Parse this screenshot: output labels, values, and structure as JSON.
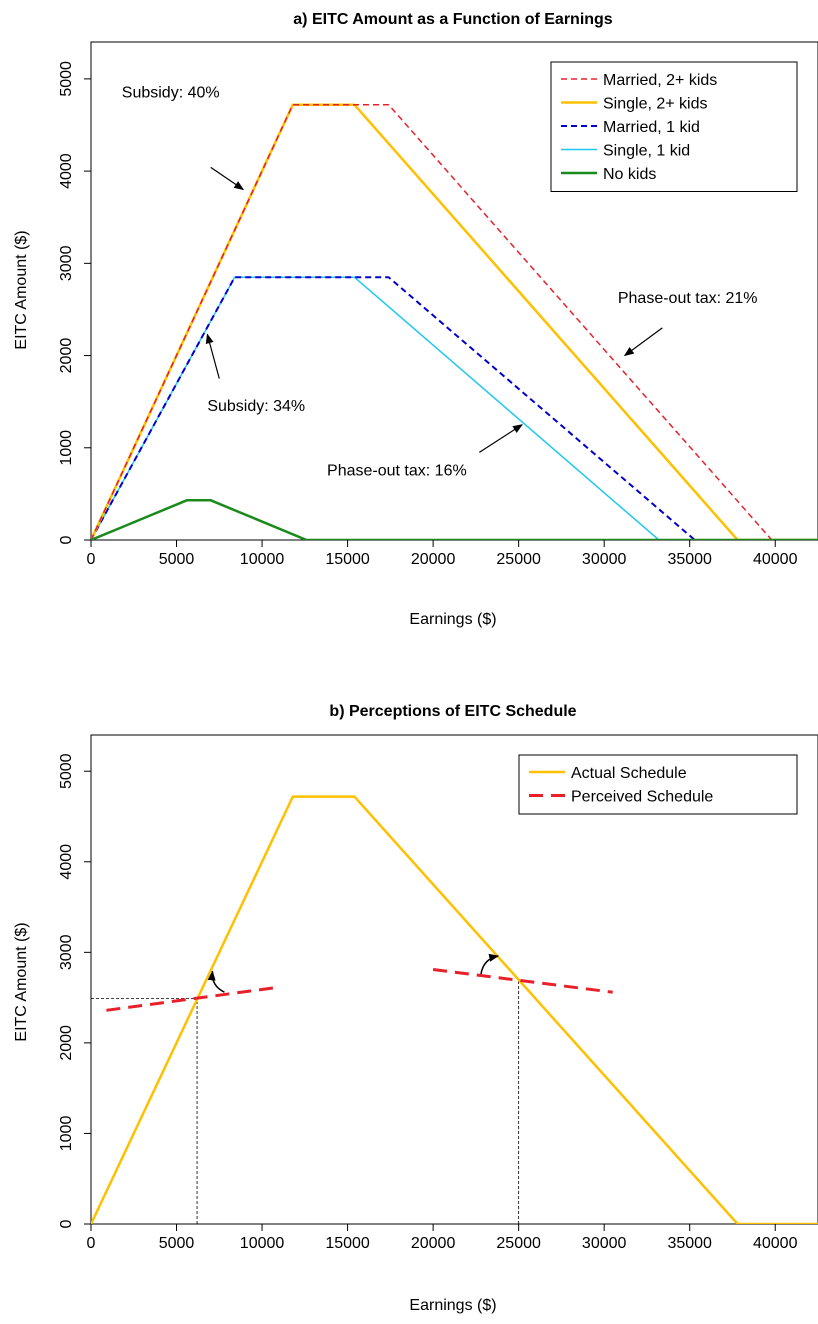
{
  "chart_data": [
    {
      "id": "a",
      "type": "line",
      "title": "a) EITC Amount as a Function of Earnings",
      "xlabel": "Earnings ($)",
      "ylabel": "EITC Amount ($)",
      "xlim": [
        0,
        42500
      ],
      "ylim": [
        0,
        5400
      ],
      "xticks": [
        0,
        5000,
        10000,
        15000,
        20000,
        25000,
        30000,
        35000,
        40000
      ],
      "xtick_labels": [
        "0",
        "5000",
        "10000",
        "15000",
        "20000",
        "25000",
        "30000",
        "35000",
        "40000"
      ],
      "yticks": [
        0,
        1000,
        2000,
        3000,
        4000,
        5000
      ],
      "ytick_labels": [
        "0",
        "1000",
        "2000",
        "3000",
        "4000",
        "5000"
      ],
      "grid": false,
      "legend_position": "top-right",
      "series": [
        {
          "name": "Single, 1 kid",
          "color": "#1EC8F0",
          "dash": "solid",
          "width": 1.5,
          "points": [
            [
              0,
              0
            ],
            [
              8400,
              2850
            ],
            [
              15400,
              2850
            ],
            [
              33200,
              0
            ],
            [
              42500,
              0
            ]
          ]
        },
        {
          "name": "Married, 1 kid",
          "color": "#0000CC",
          "dash": "dashed",
          "width": 2,
          "points": [
            [
              0,
              0
            ],
            [
              8400,
              2850
            ],
            [
              17400,
              2850
            ],
            [
              35300,
              0
            ],
            [
              42500,
              0
            ]
          ]
        },
        {
          "name": "Single, 2+ kids",
          "color": "#FFC000",
          "dash": "solid",
          "width": 2.5,
          "points": [
            [
              0,
              0
            ],
            [
              11800,
              4720
            ],
            [
              15400,
              4720
            ],
            [
              37800,
              0
            ],
            [
              42500,
              0
            ]
          ]
        },
        {
          "name": "Married, 2+ kids",
          "color": "#E8202A",
          "dash": "dashed",
          "width": 1.5,
          "points": [
            [
              0,
              0
            ],
            [
              11800,
              4720
            ],
            [
              17400,
              4720
            ],
            [
              39800,
              0
            ],
            [
              42500,
              0
            ]
          ]
        },
        {
          "name": "No kids",
          "color": "#1A8A1A",
          "dash": "solid",
          "width": 2.5,
          "points": [
            [
              0,
              0
            ],
            [
              5600,
              430
            ],
            [
              7000,
              430
            ],
            [
              12600,
              0
            ],
            [
              42500,
              0
            ]
          ]
        }
      ],
      "legend_order": [
        "Married, 2+ kids",
        "Single, 2+ kids",
        "Married, 1 kid",
        "Single, 1 kid",
        "No kids"
      ],
      "annotations": [
        {
          "text": "Subsidy: 40%",
          "tx": 1800,
          "ty": 4800,
          "ax0": 7000,
          "ay0": 4040,
          "ax1": 8900,
          "ay1": 3800
        },
        {
          "text": "Subsidy: 34%",
          "tx": 6800,
          "ty": 1400,
          "ax0": 7500,
          "ay0": 1750,
          "ax1": 6800,
          "ay1": 2230
        },
        {
          "text": "Phase-out tax: 21%",
          "tx": 30800,
          "ty": 2570,
          "ax0": 33400,
          "ay0": 2300,
          "ax1": 31200,
          "ay1": 2000
        },
        {
          "text": "Phase-out tax: 16%",
          "tx": 13800,
          "ty": 700,
          "ax0": 22700,
          "ay0": 950,
          "ax1": 25200,
          "ay1": 1250
        }
      ]
    },
    {
      "id": "b",
      "type": "line",
      "title": "b) Perceptions of EITC Schedule",
      "xlabel": "Earnings ($)",
      "ylabel": "EITC Amount ($)",
      "xlim": [
        0,
        42500
      ],
      "ylim": [
        0,
        5400
      ],
      "xticks": [
        0,
        5000,
        10000,
        15000,
        20000,
        25000,
        30000,
        35000,
        40000
      ],
      "xtick_labels": [
        "0",
        "5000",
        "10000",
        "15000",
        "20000",
        "25000",
        "30000",
        "35000",
        "40000"
      ],
      "yticks": [
        0,
        1000,
        2000,
        3000,
        4000,
        5000
      ],
      "ytick_labels": [
        "0",
        "1000",
        "2000",
        "3000",
        "4000",
        "5000"
      ],
      "grid": false,
      "legend_position": "top-right",
      "series": [
        {
          "name": "Actual Schedule",
          "color": "#FFC000",
          "dash": "solid",
          "width": 2.5,
          "points": [
            [
              0,
              0
            ],
            [
              11800,
              4720
            ],
            [
              15400,
              4720
            ],
            [
              37800,
              0
            ],
            [
              42500,
              0
            ]
          ]
        },
        {
          "name": "Perceived Schedule",
          "color": "#E8202A",
          "dash": "bigdash",
          "width": 3,
          "segments": [
            [
              [
                900,
                2360
              ],
              [
                10800,
                2610
              ]
            ],
            [
              [
                20000,
                2810
              ],
              [
                30500,
                2560
              ]
            ]
          ]
        }
      ],
      "guides": [
        [
          [
            6200,
            0
          ],
          [
            6200,
            2490
          ]
        ],
        [
          [
            0,
            2490
          ],
          [
            6200,
            2490
          ]
        ],
        [
          [
            25000,
            0
          ],
          [
            25000,
            2700
          ]
        ]
      ],
      "curved_arrows": [
        {
          "from": [
            7800,
            2560
          ],
          "to": [
            7100,
            2790
          ]
        },
        {
          "from": [
            22800,
            2760
          ],
          "to": [
            23800,
            2960
          ]
        }
      ]
    }
  ]
}
